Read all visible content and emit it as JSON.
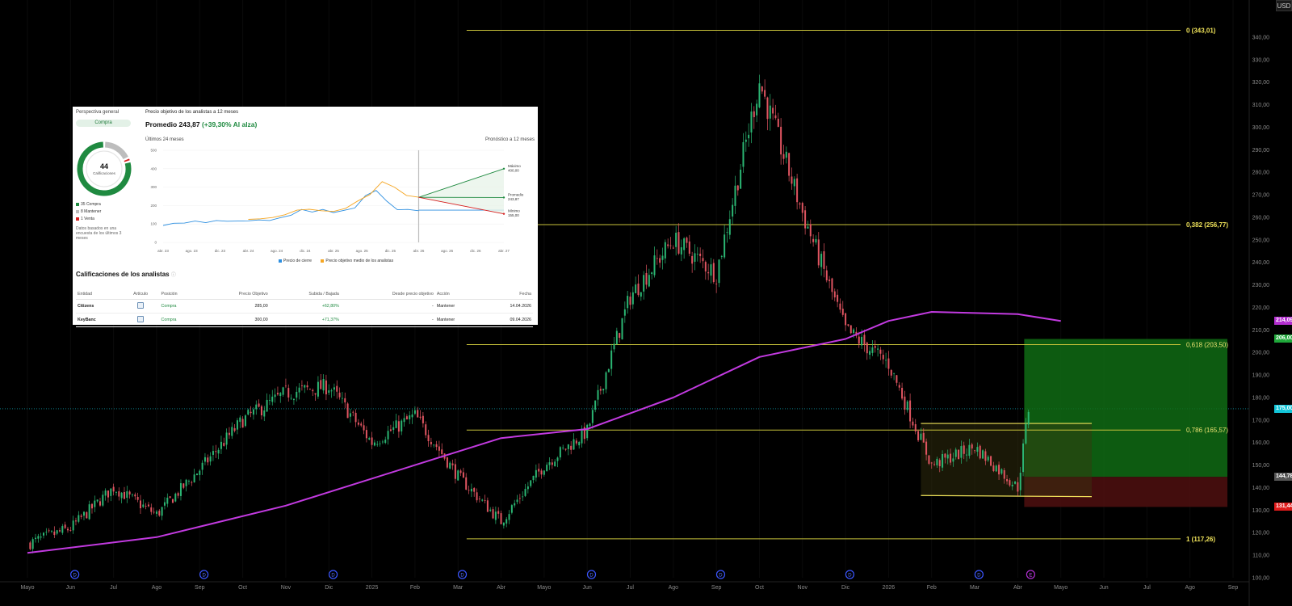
{
  "chart_data": {
    "type": "candlestick",
    "currency": "USD",
    "y_axis": {
      "range": [
        100,
        345
      ],
      "ticks": [
        "340,00",
        "330,00",
        "320,00",
        "310,00",
        "300,00",
        "290,00",
        "280,00",
        "270,00",
        "260,00",
        "250,00",
        "240,00",
        "230,00",
        "220,00",
        "210,00",
        "200,00",
        "190,00",
        "180,00",
        "170,00",
        "160,00",
        "150,00",
        "140,00",
        "130,00",
        "120,00",
        "110,00",
        "100,00"
      ]
    },
    "x_axis": {
      "labels": [
        "Mayo",
        "Jun",
        "Jul",
        "Ago",
        "Sep",
        "Oct",
        "Nov",
        "Dic",
        "2025",
        "Feb",
        "Mar",
        "Abr",
        "Mayo",
        "Jun",
        "Jul",
        "Ago",
        "Sep",
        "Oct",
        "Nov",
        "Dic",
        "2026",
        "Feb",
        "Mar",
        "Abr",
        "Mayo",
        "Jun",
        "Jul",
        "Ago",
        "Sep"
      ]
    },
    "price_path": [
      {
        "d": "2024-05",
        "v": 115
      },
      {
        "d": "2024-06",
        "v": 122
      },
      {
        "d": "2024-07",
        "v": 140
      },
      {
        "d": "2024-08",
        "v": 128
      },
      {
        "d": "2024-09",
        "v": 148
      },
      {
        "d": "2024-10",
        "v": 170
      },
      {
        "d": "2024-11",
        "v": 182
      },
      {
        "d": "2024-12",
        "v": 185
      },
      {
        "d": "2025-01",
        "v": 160
      },
      {
        "d": "2025-02",
        "v": 172
      },
      {
        "d": "2025-03",
        "v": 145
      },
      {
        "d": "2025-04",
        "v": 125
      },
      {
        "d": "2025-05",
        "v": 150
      },
      {
        "d": "2025-06",
        "v": 165
      },
      {
        "d": "2025-07",
        "v": 225
      },
      {
        "d": "2025-08",
        "v": 250
      },
      {
        "d": "2025-09",
        "v": 235
      },
      {
        "d": "2025-10",
        "v": 320
      },
      {
        "d": "2025-11",
        "v": 262
      },
      {
        "d": "2025-12",
        "v": 210
      },
      {
        "d": "2026-01",
        "v": 195
      },
      {
        "d": "2026-02",
        "v": 150
      },
      {
        "d": "2026-03",
        "v": 158
      },
      {
        "d": "2026-04",
        "v": 140
      },
      {
        "d": "2026-04b",
        "v": 175
      }
    ],
    "moving_average": [
      {
        "d": "2024-05",
        "v": 111
      },
      {
        "d": "2024-08",
        "v": 118
      },
      {
        "d": "2024-11",
        "v": 132
      },
      {
        "d": "2025-02",
        "v": 150
      },
      {
        "d": "2025-04",
        "v": 162
      },
      {
        "d": "2025-06",
        "v": 166
      },
      {
        "d": "2025-08",
        "v": 180
      },
      {
        "d": "2025-10",
        "v": 198
      },
      {
        "d": "2025-12",
        "v": 206
      },
      {
        "d": "2026-01",
        "v": 214
      },
      {
        "d": "2026-02",
        "v": 218
      },
      {
        "d": "2026-04",
        "v": 217
      },
      {
        "d": "2026-05",
        "v": 214
      }
    ],
    "fibonacci": [
      {
        "label": "0 (343,01)",
        "value": 343.01
      },
      {
        "label": "0,382 (256,77)",
        "value": 256.77
      },
      {
        "label": "0,618 (203,50)",
        "value": 203.5
      },
      {
        "label": "0,786 (165,57)",
        "value": 165.57
      },
      {
        "label": "1 (117,26)",
        "value": 117.26
      }
    ],
    "price_tags": [
      {
        "label": "214,09",
        "value": 214.09,
        "color": "#b32ed0"
      },
      {
        "label": "206,00",
        "value": 206.0,
        "color": "#1fa83a"
      },
      {
        "label": "175,00",
        "value": 175.0,
        "color": "#12c5d8"
      },
      {
        "label": "144,78",
        "value": 144.78,
        "color": "#555555"
      },
      {
        "label": "131,44",
        "value": 131.44,
        "color": "#e01b1b"
      }
    ],
    "position": {
      "entry": 144.78,
      "target": 206.0,
      "stop": 131.44
    },
    "range_box": {
      "top": 168.5,
      "bottom": 136.5
    },
    "current_price": 175.0,
    "dividend_marker": "D",
    "earnings_marker": "E",
    "colors": {
      "up": "#2bb673",
      "down": "#e05561",
      "ma": "#c23ae0",
      "fib": "#c8c23a"
    }
  },
  "panel": {
    "overview_title": "Perspectiva general",
    "rating_badge": "Compra",
    "ratings_total": "44",
    "ratings_label": "Calificaciones",
    "legend": [
      {
        "label": "35 Compra",
        "color": "#1f8a40"
      },
      {
        "label": "8 Mantener",
        "color": "#bdbdbd"
      },
      {
        "label": "1 Venta",
        "color": "#d62020"
      }
    ],
    "ratings_counts": {
      "buy": 35,
      "hold": 8,
      "sell": 1
    },
    "note": "Datos basados en una encuesta de los últimos 3 meses",
    "target_title": "Precio objetivo de los analistas a 12 meses",
    "average_text": "Promedio 243,87",
    "average_change": "(+39,30% Al alza)",
    "last24": "Últimos 24 meses",
    "forecast12": "Pronóstico a 12 meses",
    "mini_y_ticks": [
      "500",
      "400",
      "300",
      "200",
      "100",
      "0"
    ],
    "mini_x_ticks": [
      "abr. 23",
      "ago. 23",
      "dic. 23",
      "abr. 24",
      "ago. 24",
      "dic. 24",
      "abr. 25",
      "ago. 25",
      "dic. 25",
      "abr. 26",
      "ago. 26",
      "dic. 26",
      "abr. 27"
    ],
    "mini_series": {
      "close": [
        95,
        100,
        108,
        112,
        110,
        115,
        118,
        112,
        120,
        118,
        122,
        130,
        150,
        175,
        168,
        175,
        165,
        170,
        190,
        250,
        285,
        220,
        180,
        175,
        175
      ],
      "target": [
        125,
        128,
        135,
        150,
        175,
        180,
        172,
        168,
        185,
        225,
        260,
        330,
        300,
        255,
        245
      ]
    },
    "forecast": {
      "max_label": "Máximo",
      "max": "400,00",
      "avg_label": "Promedio",
      "avg": "243,87",
      "min_label": "Mínimo",
      "min": "155,00",
      "max_v": 400,
      "avg_v": 243.87,
      "min_v": 155
    },
    "mini_legend": [
      "Precio de cierre",
      "Precio objetivo medio de los analistas"
    ],
    "table_title": "Calificaciones de los analistas",
    "table_headers": [
      "Entidad",
      "Artículo",
      "Posición",
      "Precio Objetivo",
      "Subida / Bajada",
      "Desde precio objetivo",
      "Acción",
      "Fecha"
    ],
    "rows": [
      [
        "Citizens",
        "",
        "Compra",
        "285,00",
        "+62,80%",
        "-",
        "Mantener",
        "14.04.2026"
      ],
      [
        "KeyBanc",
        "",
        "Compra",
        "300,00",
        "+71,37%",
        "-",
        "Mantener",
        "09.04.2026"
      ]
    ]
  }
}
